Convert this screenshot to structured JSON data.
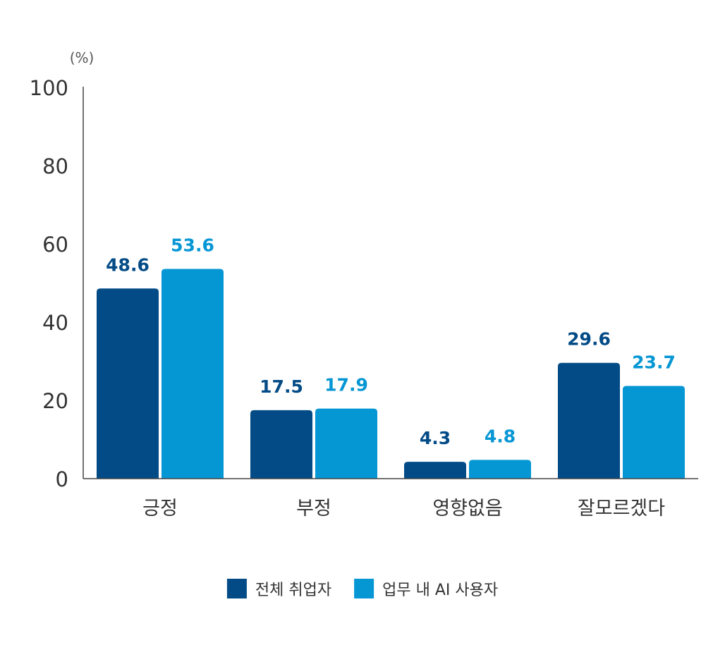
{
  "chart_data": {
    "type": "bar",
    "unit_label": "(%)",
    "categories": [
      "긍정",
      "부정",
      "영향없음",
      "잘모르겠다"
    ],
    "series": [
      {
        "name": "전체 취업자",
        "values": [
          48.6,
          17.5,
          4.3,
          29.6
        ],
        "value_labels": [
          "48.6",
          "17.5",
          "4.3",
          "29.6"
        ],
        "color": "#024b86"
      },
      {
        "name": "업무 내 AI 사용자",
        "values": [
          53.6,
          17.9,
          4.8,
          23.7
        ],
        "value_labels": [
          "53.6",
          "17.9",
          "4.8",
          "23.7"
        ],
        "color": "#0596d4"
      }
    ],
    "y_ticks": [
      "0",
      "20",
      "40",
      "60",
      "80",
      "100"
    ],
    "y_tick_values": [
      0,
      20,
      40,
      60,
      80,
      100
    ],
    "ylim": [
      0,
      100
    ],
    "grid": false,
    "legend_position": "bottom-center",
    "title": "",
    "xlabel": "",
    "ylabel": ""
  }
}
